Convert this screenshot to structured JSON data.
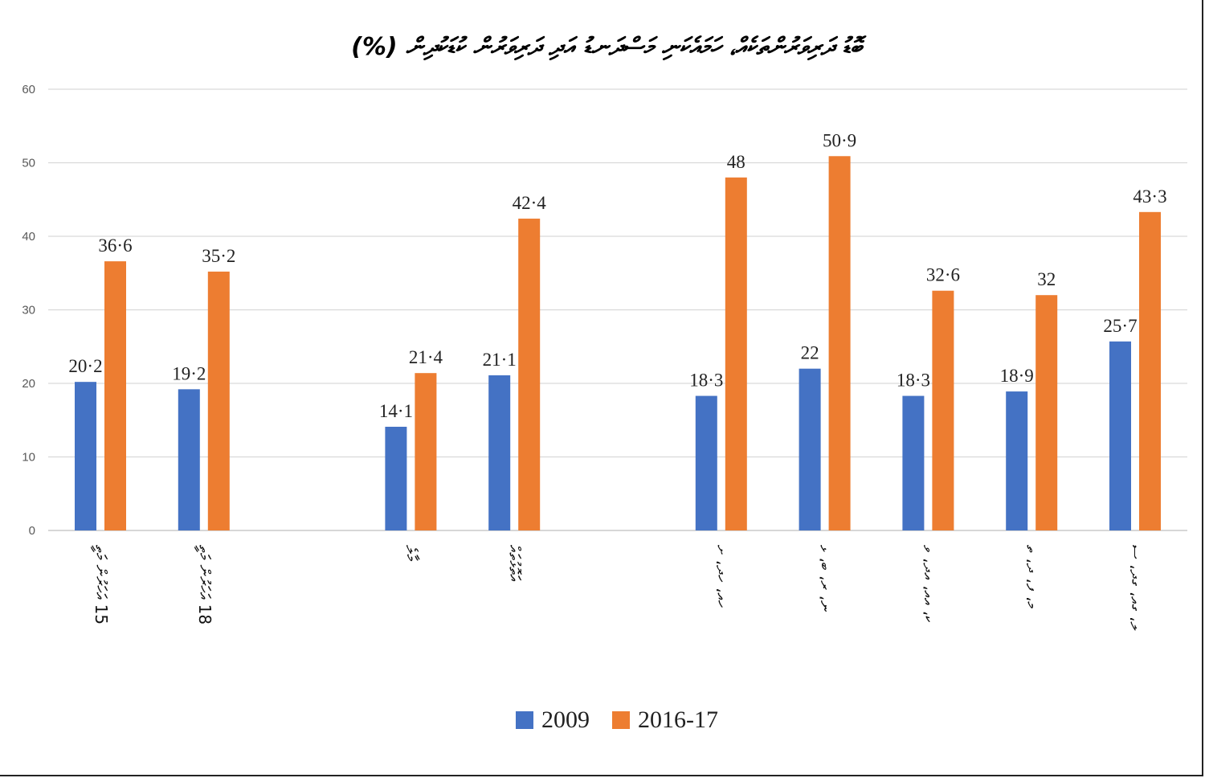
{
  "chart_data": {
    "type": "bar",
    "title": "ބޮޑު ދަރިވަރުންތަކެއް، ހަމައެކަނި މަސްދަނޑު އަދި ދަރިވަރުން ކުޑަކުދިން (%)",
    "categories": [
      "15 އަހަރުން މަތީ",
      "18 އަހަރުން މަތީ",
      "މާލެ",
      "އަތޮޅުތައް",
      "ހއ، ހދ، ށ",
      "ނ، ރ، ބ، ޅ",
      "ކ، އއ، އދ، ވ",
      "މ، ފ، ދ، ތ",
      "ލ، ގއ، ގދ، ސ"
    ],
    "series": [
      {
        "name": "2009",
        "color": "#4472C4",
        "values": [
          20.2,
          19.2,
          14.1,
          21.1,
          18.3,
          22,
          18.3,
          18.9,
          25.7
        ],
        "labels": [
          "20·2",
          "19·2",
          "14·1",
          "21·1",
          "18·3",
          "22",
          "18·3",
          "18·9",
          "25·7"
        ]
      },
      {
        "name": "2016-17",
        "color": "#ED7D31",
        "values": [
          36.6,
          35.2,
          21.4,
          42.4,
          48,
          50.9,
          32.6,
          32,
          43.3
        ],
        "labels": [
          "36·6",
          "35·2",
          "21·4",
          "42·4",
          "48",
          "50·9",
          "32·6",
          "32",
          "43·3"
        ]
      }
    ],
    "xlabel": "",
    "ylabel": "",
    "ylim": [
      0,
      60
    ],
    "yticks": [
      "0",
      "10",
      "20",
      "30",
      "40",
      "50",
      "60"
    ],
    "grid": true,
    "legend": "bottom"
  }
}
